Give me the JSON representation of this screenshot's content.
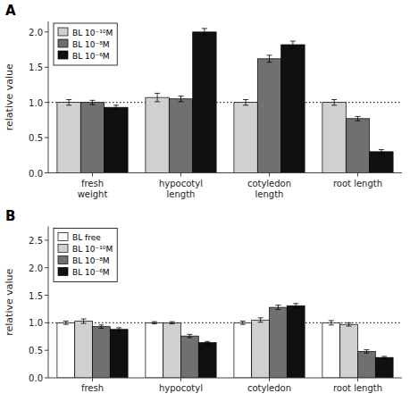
{
  "chart_data": [
    {
      "type": "bar",
      "title": "A",
      "y_label": "relative value",
      "categories": [
        "fresh\nweight",
        "hypocotyl\nlength",
        "cotyledon\nlength",
        "root length"
      ],
      "series": [
        {
          "name": "BL 10⁻¹⁰M",
          "color": "#d0d0d0",
          "values": [
            1.0,
            1.07,
            1.0,
            1.0
          ],
          "errors": [
            0.04,
            0.06,
            0.04,
            0.04
          ]
        },
        {
          "name": "BL 10⁻⁸M",
          "color": "#707070",
          "values": [
            1.0,
            1.05,
            1.62,
            0.77
          ],
          "errors": [
            0.03,
            0.04,
            0.05,
            0.03
          ]
        },
        {
          "name": "BL 10⁻⁶M",
          "color": "#101010",
          "values": [
            0.93,
            2.0,
            1.82,
            0.3
          ],
          "errors": [
            0.03,
            0.05,
            0.05,
            0.03
          ]
        }
      ],
      "reference_line": 1.0,
      "ylim": [
        0,
        2.15
      ],
      "yticks": [
        {
          "value": 0,
          "label": "0.0"
        },
        0.5,
        {
          "value": 1.0,
          "label": "1.0"
        },
        1.5,
        {
          "value": 2.0,
          "label": "2.0"
        }
      ],
      "grid": false,
      "legend": "upper left"
    },
    {
      "type": "bar",
      "title": "B",
      "y_label": "relative value",
      "categories": [
        "fresh",
        "hypocotyl",
        "cotyledon",
        "root length"
      ],
      "series": [
        {
          "name": "BL free",
          "color": "#ffffff",
          "values": [
            1.0,
            1.0,
            1.0,
            1.0
          ],
          "errors": [
            0.03,
            0.02,
            0.03,
            0.04
          ]
        },
        {
          "name": "BL 10⁻¹⁰M",
          "color": "#d0d0d0",
          "values": [
            1.03,
            1.0,
            1.05,
            0.97
          ],
          "errors": [
            0.04,
            0.02,
            0.04,
            0.03
          ]
        },
        {
          "name": "BL 10⁻⁸M",
          "color": "#707070",
          "values": [
            0.93,
            0.76,
            1.28,
            0.48
          ],
          "errors": [
            0.03,
            0.03,
            0.04,
            0.03
          ]
        },
        {
          "name": "BL 10⁻⁶M",
          "color": "#101010",
          "values": [
            0.88,
            0.64,
            1.31,
            0.37
          ],
          "errors": [
            0.03,
            0.02,
            0.04,
            0.02
          ]
        }
      ],
      "reference_line": 1.0,
      "ylim": [
        0,
        2.75
      ],
      "yticks": [
        {
          "value": 0,
          "label": "0.0"
        },
        0.5,
        {
          "value": 1.0,
          "label": "1.0"
        },
        1.5,
        {
          "value": 2.0,
          "label": "2.0"
        },
        2.5
      ],
      "grid": false,
      "legend": "upper left"
    }
  ]
}
